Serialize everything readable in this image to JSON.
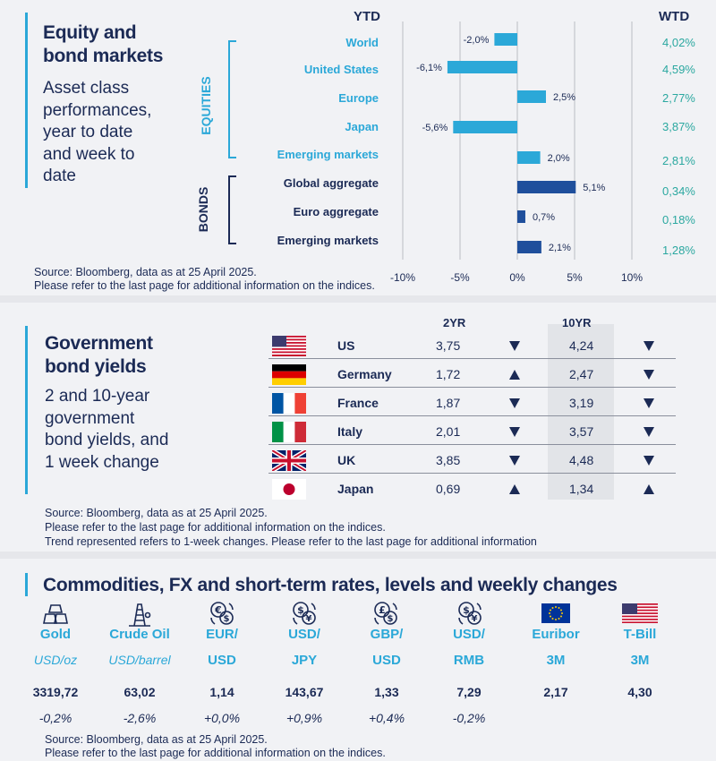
{
  "colors": {
    "navy": "#1b2a55",
    "light_blue": "#2ba8d8",
    "teal": "#2ba8a0",
    "dark_blue": "#1f4f9c"
  },
  "equity": {
    "title_line1": "Equity and",
    "title_line2": "bond markets",
    "subtitle_lines": [
      "Asset class",
      "performances,",
      "year to date",
      "and week to",
      "date"
    ],
    "ytd_header": "YTD",
    "wtd_header": "WTD",
    "group_equities": "EQUITIES",
    "group_bonds": "BONDS",
    "source_line1": "Source: Bloomberg, data as at 25 April 2025.",
    "source_line2": "Please refer to the last page for additional information on the indices."
  },
  "chart_data": {
    "type": "bar",
    "orientation": "horizontal",
    "title": "Asset class performances, year to date and week to date",
    "categories": [
      "World",
      "United States",
      "Europe",
      "Japan",
      "Emerging  markets",
      "Global aggregate",
      "Euro aggregate",
      "Emerging  markets"
    ],
    "groups": [
      "equities",
      "equities",
      "equities",
      "equities",
      "equities",
      "bonds",
      "bonds",
      "bonds"
    ],
    "series": [
      {
        "name": "YTD",
        "values": [
          -2.0,
          -6.1,
          2.5,
          -5.6,
          2.0,
          5.1,
          0.7,
          2.1
        ],
        "labels": [
          "-2,0%",
          "-6,1%",
          "2,5%",
          "-5,6%",
          "2,0%",
          "5,1%",
          "0,7%",
          "2,1%"
        ]
      },
      {
        "name": "WTD",
        "values": [
          4.02,
          4.59,
          2.77,
          3.87,
          2.81,
          0.34,
          0.18,
          1.28
        ],
        "labels": [
          "4,02%",
          "4,59%",
          "2,77%",
          "3,87%",
          "2,81%",
          "0,34%",
          "0,18%",
          "1,28%"
        ]
      }
    ],
    "xlim": [
      -10,
      10
    ],
    "xticks": [
      -10,
      -5,
      0,
      5,
      10
    ],
    "xtick_labels": [
      "-10%",
      "-5%",
      "0%",
      "5%",
      "10%"
    ],
    "grid": true
  },
  "bonds": {
    "title_line1": "Government",
    "title_line2": "bond yields",
    "subtitle_lines": [
      "2 and 10-year",
      "government",
      "bond yields, and",
      "1 week change"
    ],
    "col_2yr": "2YR",
    "col_10yr": "10YR",
    "rows": [
      {
        "country": "US",
        "y2": "3,75",
        "t2": "down",
        "y10": "4,24",
        "t10": "down"
      },
      {
        "country": "Germany",
        "y2": "1,72",
        "t2": "up",
        "y10": "2,47",
        "t10": "down"
      },
      {
        "country": "France",
        "y2": "1,87",
        "t2": "down",
        "y10": "3,19",
        "t10": "down"
      },
      {
        "country": "Italy",
        "y2": "2,01",
        "t2": "down",
        "y10": "3,57",
        "t10": "down"
      },
      {
        "country": "UK",
        "y2": "3,85",
        "t2": "down",
        "y10": "4,48",
        "t10": "down"
      },
      {
        "country": "Japan",
        "y2": "0,69",
        "t2": "up",
        "y10": "1,34",
        "t10": "up"
      }
    ],
    "source_line1": "Source: Bloomberg, data as at 25 April 2025.",
    "source_line2": "Please refer to the last page for additional information on the indices.",
    "source_line3": "Trend represented refers to 1-week changes. Please refer to the last page for additional information"
  },
  "commodities": {
    "title": "Commodities, FX and short-term rates, levels and weekly changes",
    "items": [
      {
        "name": "Gold",
        "unit": "USD/oz",
        "level": "3319,72",
        "change": "-0,2%",
        "icon": "gold-bars-icon"
      },
      {
        "name": "Crude Oil",
        "unit": "USD/barrel",
        "level": "63,02",
        "change": "-2,6%",
        "icon": "oil-rig-icon"
      },
      {
        "name": "EUR/",
        "unit": "USD",
        "level": "1,14",
        "change": "+0,0%",
        "icon": "euro-dollar-exchange-icon"
      },
      {
        "name": "USD/",
        "unit": "JPY",
        "level": "143,67",
        "change": "+0,9%",
        "icon": "dollar-yen-exchange-icon"
      },
      {
        "name": "GBP/",
        "unit": "USD",
        "level": "1,33",
        "change": "+0,4%",
        "icon": "pound-dollar-exchange-icon"
      },
      {
        "name": "USD/",
        "unit": "RMB",
        "level": "7,29",
        "change": "-0,2%",
        "icon": "dollar-yuan-exchange-icon"
      },
      {
        "name": "Euribor",
        "unit": "3M",
        "level": "2,17",
        "change": "",
        "icon": "eu-flag-icon"
      },
      {
        "name": "T-Bill",
        "unit": "3M",
        "level": "4,30",
        "change": "",
        "icon": "us-flag-icon"
      }
    ],
    "source_line1": "Source: Bloomberg, data as at 25 April 2025.",
    "source_line2": "Please refer to the last page for additional information on the indices."
  }
}
